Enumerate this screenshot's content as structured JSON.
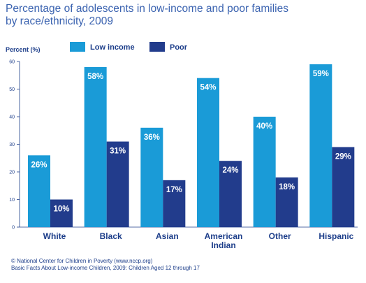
{
  "title": {
    "line1": "Percentage of adolescents in low-income and poor families",
    "line2": "by race/ethnicity, 2009"
  },
  "footer": {
    "line1": "© National Center for Children in Poverty (www.nccp.org)",
    "line2": "Basic Facts About Low-income Children, 2009: Children Aged 12 through 17"
  },
  "colors": {
    "low_income": "#1a9bd7",
    "poor": "#223c8c",
    "text": "#1d3e8a",
    "title": "#3b63b0"
  },
  "chart_data": {
    "type": "bar",
    "ylabel": "Percent (%)",
    "ylim": [
      0,
      60
    ],
    "yticks": [
      0,
      10,
      20,
      30,
      40,
      50,
      60
    ],
    "grid": false,
    "legend_position": "top",
    "categories": [
      [
        "White"
      ],
      [
        "Black"
      ],
      [
        "Asian"
      ],
      [
        "American",
        "Indian"
      ],
      [
        "Other"
      ],
      [
        "Hispanic"
      ]
    ],
    "series": [
      {
        "name": "Low income",
        "values": [
          26,
          58,
          36,
          54,
          40,
          59
        ],
        "labels": [
          "26%",
          "58%",
          "36%",
          "54%",
          "40%",
          "59%"
        ]
      },
      {
        "name": "Poor",
        "values": [
          10,
          31,
          17,
          24,
          18,
          29
        ],
        "labels": [
          "10%",
          "31%",
          "17%",
          "24%",
          "18%",
          "29%"
        ]
      }
    ]
  }
}
